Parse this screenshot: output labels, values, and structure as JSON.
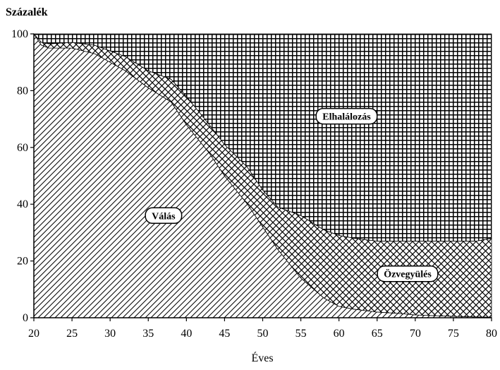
{
  "chart_data": {
    "type": "area",
    "stacked": true,
    "title": "",
    "ylabel": "Százalék",
    "xlabel": "Éves",
    "xlim": [
      20,
      80
    ],
    "ylim": [
      0,
      100
    ],
    "x_ticks": [
      20,
      25,
      30,
      35,
      40,
      45,
      50,
      55,
      60,
      65,
      70,
      75,
      80
    ],
    "y_ticks": [
      0,
      20,
      40,
      60,
      80,
      100
    ],
    "x": [
      20,
      21,
      22,
      25,
      28,
      30,
      32,
      35,
      38,
      40,
      43,
      45,
      48,
      50,
      52,
      55,
      58,
      60,
      62,
      65,
      68,
      70,
      75,
      78,
      80
    ],
    "series": [
      {
        "name": "Válás",
        "pattern": "diagonal",
        "values": [
          100,
          96,
          95,
          95,
          93,
          90,
          87,
          81,
          76,
          68,
          58,
          50,
          40,
          32,
          24,
          14,
          7,
          4,
          3,
          2,
          1.5,
          1,
          0.5,
          0.3,
          0.2
        ]
      },
      {
        "name": "Özvegyülés",
        "pattern": "crosshatch",
        "values": [
          0,
          1,
          1.5,
          2,
          3,
          4,
          5,
          6,
          8,
          10,
          10,
          11,
          13,
          13,
          15,
          22,
          24,
          25,
          25,
          25,
          25.5,
          26,
          26.5,
          26.7,
          27.8
        ]
      },
      {
        "name": "Elhalálozás",
        "pattern": "grid",
        "values": [
          0,
          3,
          3.5,
          3,
          4,
          6,
          8,
          13,
          16,
          22,
          32,
          39,
          47,
          55,
          61,
          64,
          69,
          71,
          72,
          73,
          73,
          73,
          73,
          73,
          72
        ]
      }
    ],
    "annotations": [
      {
        "series": "Válás",
        "text": "Válás",
        "x": 37,
        "y": 36
      },
      {
        "series": "Elhalálozás",
        "text": "Elhalálozás",
        "x": 61,
        "y": 71
      },
      {
        "series": "Özvegyülés",
        "text": "Özvegyülés",
        "x": 69,
        "y": 15.5
      }
    ],
    "grid": false,
    "legend": "none"
  }
}
